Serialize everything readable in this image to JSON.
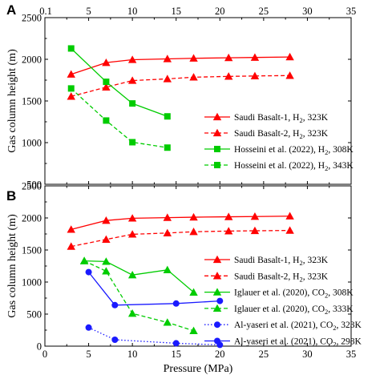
{
  "chart_data": [
    {
      "type": "line",
      "panel_label": "A",
      "xlabel": "",
      "ylabel": "Gas column height (m)",
      "xlim": [
        0,
        35
      ],
      "ylim": [
        500,
        2500
      ],
      "xticks": [
        0.1,
        5,
        10,
        15,
        20,
        25,
        30,
        35
      ],
      "yticks": [
        500,
        1000,
        1500,
        2000,
        2500
      ],
      "xtick_position": "top",
      "grid": false,
      "legend_position": "right",
      "series": [
        {
          "name_main": "Saudi Basalt-1, H",
          "name_sub": "2",
          "name_tail": ", 323K",
          "color": "#ff0000",
          "dash": "solid",
          "marker": "triangle",
          "x": [
            3,
            7,
            10,
            14,
            17,
            21,
            24,
            28
          ],
          "y": [
            1820,
            1960,
            1995,
            2005,
            2012,
            2018,
            2022,
            2028
          ]
        },
        {
          "name_main": "Saudi Basalt-2, H",
          "name_sub": "2",
          "name_tail": ", 323K",
          "color": "#ff0000",
          "dash": "dashed",
          "marker": "triangle",
          "x": [
            3,
            7,
            10,
            14,
            17,
            21,
            24,
            28
          ],
          "y": [
            1555,
            1665,
            1745,
            1765,
            1785,
            1795,
            1800,
            1805
          ]
        },
        {
          "name_main": "Hosseini et al. (2022), H",
          "name_sub": "2",
          "name_tail": ", 308K",
          "color": "#00cc00",
          "dash": "solid",
          "marker": "square",
          "x": [
            3,
            7,
            10,
            14
          ],
          "y": [
            2130,
            1730,
            1470,
            1315
          ]
        },
        {
          "name_main": "Hosseini et al. (2022), H",
          "name_sub": "2",
          "name_tail": ", 343K",
          "color": "#00cc00",
          "dash": "dashed",
          "marker": "square",
          "x": [
            3,
            7,
            10,
            14
          ],
          "y": [
            1650,
            1265,
            1005,
            940
          ]
        }
      ]
    },
    {
      "type": "line",
      "panel_label": "B",
      "xlabel": "Pressure (MPa)",
      "ylabel": "Gas column height (m)",
      "xlim": [
        0,
        35
      ],
      "ylim": [
        0,
        2500
      ],
      "xticks": [
        0,
        5,
        10,
        15,
        20,
        25,
        30,
        35
      ],
      "yticks": [
        0,
        500,
        1000,
        1500,
        2000,
        2500
      ],
      "xtick_position": "bottom",
      "grid": false,
      "legend_position": "right",
      "series": [
        {
          "name_main": "Saudi Basalt-1, H",
          "name_sub": "2",
          "name_tail": ", 323K",
          "color": "#ff0000",
          "dash": "solid",
          "marker": "triangle",
          "x": [
            3,
            7,
            10,
            14,
            17,
            21,
            24,
            28
          ],
          "y": [
            1820,
            1960,
            1995,
            2005,
            2012,
            2018,
            2022,
            2028
          ]
        },
        {
          "name_main": "Saudi Basalt-2, H",
          "name_sub": "2",
          "name_tail": ", 323K",
          "color": "#ff0000",
          "dash": "dashed",
          "marker": "triangle",
          "x": [
            3,
            7,
            10,
            14,
            17,
            21,
            24,
            28
          ],
          "y": [
            1555,
            1665,
            1745,
            1765,
            1785,
            1795,
            1800,
            1805
          ]
        },
        {
          "name_main": "Iglauer et al. (2020), CO",
          "name_sub": "2",
          "name_tail": ", 308K",
          "color": "#00cc00",
          "dash": "solid",
          "marker": "triangle",
          "x": [
            4.5,
            7,
            10,
            14,
            17
          ],
          "y": [
            1330,
            1320,
            1110,
            1190,
            840
          ]
        },
        {
          "name_main": "Iglauer et al. (2020), CO",
          "name_sub": "2",
          "name_tail": ", 333K",
          "color": "#00cc00",
          "dash": "dashed",
          "marker": "triangle",
          "x": [
            4.5,
            7,
            10,
            14,
            17
          ],
          "y": [
            1330,
            1170,
            510,
            370,
            240
          ]
        },
        {
          "name_main": "Al-yaseri et al. (2021), CO",
          "name_sub": "2",
          "name_tail": ", 323K",
          "color": "#1a1aff",
          "dash": "dotted",
          "marker": "circle",
          "x": [
            5,
            8,
            15,
            20
          ],
          "y": [
            290,
            100,
            45,
            20
          ]
        },
        {
          "name_main": "Al-yaseri et al. (2021), CO",
          "name_sub": "2",
          "name_tail": ", 298K",
          "color": "#1a1aff",
          "dash": "solid",
          "marker": "circle",
          "x": [
            5,
            8,
            15,
            20
          ],
          "y": [
            1155,
            640,
            665,
            705
          ]
        }
      ]
    }
  ]
}
